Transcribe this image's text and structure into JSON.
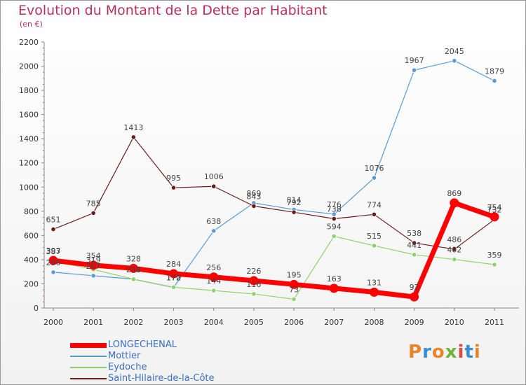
{
  "title": "Evolution du Montant de la Dette par Habitant",
  "subtitle": "(en €)",
  "logo_text": "Proxiti",
  "logo_colors": [
    "#e8852a",
    "#3a8fd4",
    "#e8852a",
    "#6cb33e",
    "#e04a3a",
    "#3a8fd4",
    "#e8852a"
  ],
  "chart_data": {
    "type": "line",
    "x": [
      "2000",
      "2001",
      "2002",
      "2003",
      "2004",
      "2005",
      "2006",
      "2007",
      "2008",
      "2009",
      "2010",
      "2011"
    ],
    "ylim": [
      0,
      2200
    ],
    "yticks": [
      0,
      200,
      400,
      600,
      800,
      1000,
      1200,
      1400,
      1600,
      1800,
      2000,
      2200
    ],
    "grid": false,
    "legend_position": "bottom-left",
    "series": [
      {
        "name": "LONGECHENAL",
        "color": "#ff0000",
        "values": [
          393,
          354,
          328,
          284,
          256,
          226,
          195,
          163,
          131,
          92,
          869,
          754
        ]
      },
      {
        "name": "Mottier",
        "color": "#5b9bd5",
        "values": [
          296,
          267,
          238,
          170,
          638,
          869,
          814,
          776,
          1076,
          1967,
          2045,
          1879
        ]
      },
      {
        "name": "Eydoche",
        "color": "#8fd16a",
        "values": [
          387,
          319,
          238,
          172,
          144,
          116,
          73,
          594,
          515,
          441,
          402,
          359
        ]
      },
      {
        "name": "Saint-Hilaire-de-la-Côte",
        "color": "#6b1a1a",
        "values": [
          651,
          785,
          1413,
          995,
          1006,
          843,
          792,
          738,
          774,
          538,
          486,
          732
        ]
      }
    ],
    "value_labels": {
      "LONGECHENAL": [
        "393",
        "354",
        "328",
        "284",
        "256",
        "226",
        "195",
        "163",
        "131",
        "92",
        "869",
        "754"
      ],
      "Mottier": [
        "296",
        "267",
        "238",
        "170",
        "638",
        "869",
        "814",
        "776",
        "1076",
        "1967",
        "2045",
        "1879"
      ],
      "Eydoche": [
        "387",
        "319",
        "238",
        "172",
        "144",
        "116",
        "73",
        "594",
        "515",
        "441",
        "402",
        "359"
      ],
      "Saint-Hilaire-de-la-Côte": [
        "651",
        "785",
        "1413",
        "995",
        "1006",
        "843",
        "792",
        "738",
        "774",
        "538",
        "486",
        "732"
      ]
    }
  }
}
